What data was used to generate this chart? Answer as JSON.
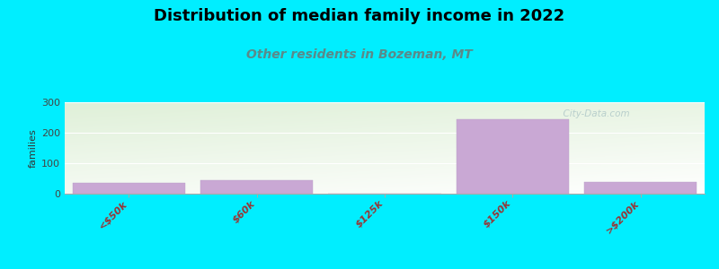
{
  "title": "Distribution of median family income in 2022",
  "subtitle": "Other residents in Bozeman, MT",
  "categories": [
    "<$50k",
    "$60k",
    "$125k",
    "$150k",
    ">$200k"
  ],
  "values": [
    35,
    45,
    0,
    245,
    38
  ],
  "bar_color": "#c9a8d4",
  "bar_edge_color": "#b8a0c8",
  "ylabel": "families",
  "ylim": [
    0,
    300
  ],
  "yticks": [
    0,
    100,
    200,
    300
  ],
  "bg_color": "#00eeff",
  "plot_bg_top_left": "#dff0d8",
  "plot_bg_bottom_right": "#f8fbf5",
  "plot_bg_white": "#ffffff",
  "title_fontsize": 13,
  "subtitle_fontsize": 10,
  "subtitle_color": "#5a8a8a",
  "tick_label_color": "#993333",
  "watermark": "  City-Data.com",
  "watermark_color": "#b0c8c8"
}
